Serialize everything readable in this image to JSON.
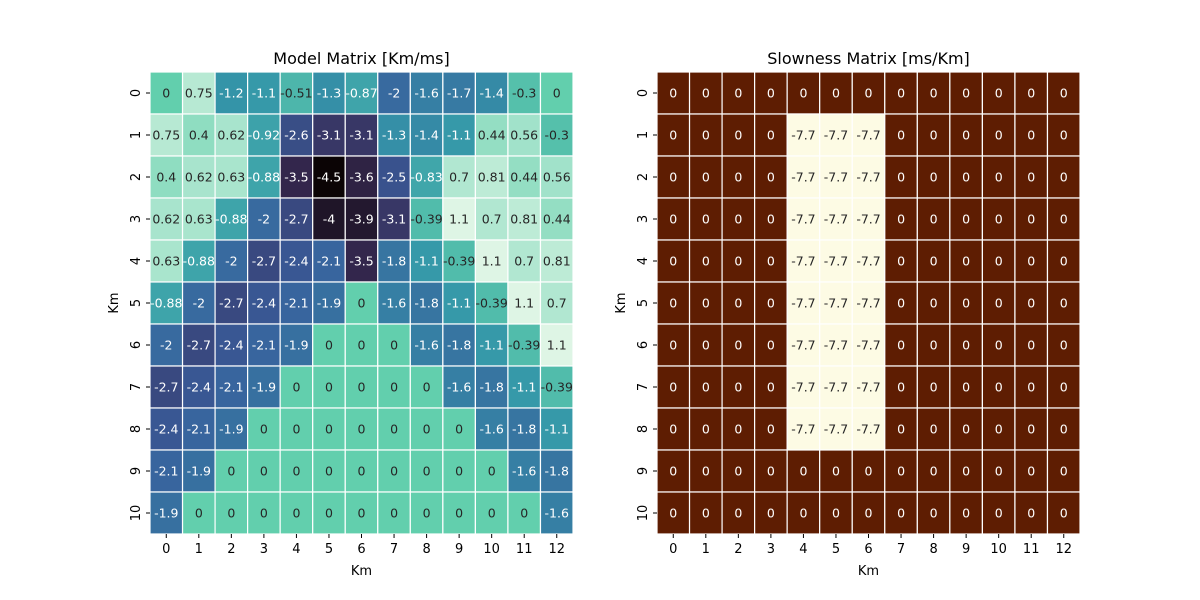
{
  "chart_data": [
    {
      "type": "heatmap",
      "title": "Model Matrix [Km/ms]",
      "xlabel": "Km",
      "ylabel": "Km",
      "x_ticks": [
        "0",
        "1",
        "2",
        "3",
        "4",
        "5",
        "6",
        "7",
        "8",
        "9",
        "10",
        "11",
        "12"
      ],
      "y_ticks": [
        "0",
        "1",
        "2",
        "3",
        "4",
        "5",
        "6",
        "7",
        "8",
        "9",
        "10"
      ],
      "colormap": "mako",
      "grid": true,
      "annotations": true,
      "values": [
        [
          0,
          0.75,
          -1.2,
          -1.1,
          -0.51,
          -1.3,
          -0.87,
          -2,
          -1.6,
          -1.7,
          -1.4,
          -0.3,
          0
        ],
        [
          0.75,
          0.4,
          0.62,
          -0.92,
          -2.6,
          -3.1,
          -3.1,
          -1.3,
          -1.4,
          -1.1,
          0.44,
          0.56,
          -0.3
        ],
        [
          0.4,
          0.62,
          0.63,
          -0.88,
          -3.5,
          -4.5,
          -3.6,
          -2.5,
          -0.83,
          0.7,
          0.81,
          0.44,
          0.56
        ],
        [
          0.62,
          0.63,
          -0.88,
          -2,
          -2.7,
          -4,
          -3.9,
          -3.1,
          -0.39,
          1.1,
          0.7,
          0.81,
          0.44
        ],
        [
          0.63,
          -0.88,
          -2,
          -2.7,
          -2.4,
          -2.1,
          -3.5,
          -1.8,
          -1.1,
          -0.39,
          1.1,
          0.7,
          0.81
        ],
        [
          -0.88,
          -2,
          -2.7,
          -2.4,
          -2.1,
          -1.9,
          0,
          -1.6,
          -1.8,
          -1.1,
          -0.39,
          1.1,
          0.7
        ],
        [
          -2,
          -2.7,
          -2.4,
          -2.1,
          -1.9,
          0,
          0,
          0,
          -1.6,
          -1.8,
          -1.1,
          -0.39,
          1.1
        ],
        [
          -2.7,
          -2.4,
          -2.1,
          -1.9,
          0,
          0,
          0,
          0,
          0,
          -1.6,
          -1.8,
          -1.1,
          -0.39
        ],
        [
          -2.4,
          -2.1,
          -1.9,
          0,
          0,
          0,
          0,
          0,
          0,
          0,
          -1.6,
          -1.8,
          -1.1
        ],
        [
          -2.1,
          -1.9,
          0,
          0,
          0,
          0,
          0,
          0,
          0,
          0,
          0,
          -1.6,
          -1.8
        ],
        [
          -1.9,
          0,
          0,
          0,
          0,
          0,
          0,
          0,
          0,
          0,
          0,
          0,
          -1.6
        ]
      ]
    },
    {
      "type": "heatmap",
      "title": "Slowness Matrix [ms/Km]",
      "xlabel": "Km",
      "ylabel": "Km",
      "x_ticks": [
        "0",
        "1",
        "2",
        "3",
        "4",
        "5",
        "6",
        "7",
        "8",
        "9",
        "10",
        "11",
        "12"
      ],
      "y_ticks": [
        "0",
        "1",
        "2",
        "3",
        "4",
        "5",
        "6",
        "7",
        "8",
        "9",
        "10"
      ],
      "colormap": "brown-to-cream",
      "grid": true,
      "annotations": true,
      "values": [
        [
          0,
          0,
          0,
          0,
          0,
          0,
          0,
          0,
          0,
          0,
          0,
          0,
          0
        ],
        [
          0,
          0,
          0,
          0,
          -7.7,
          -7.7,
          -7.7,
          0,
          0,
          0,
          0,
          0,
          0
        ],
        [
          0,
          0,
          0,
          0,
          -7.7,
          -7.7,
          -7.7,
          0,
          0,
          0,
          0,
          0,
          0
        ],
        [
          0,
          0,
          0,
          0,
          -7.7,
          -7.7,
          -7.7,
          0,
          0,
          0,
          0,
          0,
          0
        ],
        [
          0,
          0,
          0,
          0,
          -7.7,
          -7.7,
          -7.7,
          0,
          0,
          0,
          0,
          0,
          0
        ],
        [
          0,
          0,
          0,
          0,
          -7.7,
          -7.7,
          -7.7,
          0,
          0,
          0,
          0,
          0,
          0
        ],
        [
          0,
          0,
          0,
          0,
          -7.7,
          -7.7,
          -7.7,
          0,
          0,
          0,
          0,
          0,
          0
        ],
        [
          0,
          0,
          0,
          0,
          -7.7,
          -7.7,
          -7.7,
          0,
          0,
          0,
          0,
          0,
          0
        ],
        [
          0,
          0,
          0,
          0,
          -7.7,
          -7.7,
          -7.7,
          0,
          0,
          0,
          0,
          0,
          0
        ],
        [
          0,
          0,
          0,
          0,
          0,
          0,
          0,
          0,
          0,
          0,
          0,
          0,
          0
        ],
        [
          0,
          0,
          0,
          0,
          0,
          0,
          0,
          0,
          0,
          0,
          0,
          0,
          0
        ]
      ]
    }
  ],
  "colors": {
    "model_palette": [
      "#0b0405",
      "#382a54",
      "#395d9c",
      "#3497a9",
      "#60ceac",
      "#def5e5"
    ],
    "slowness_palette": [
      "#fdfbe4",
      "#5e1d02"
    ],
    "grid_line": "#ffffff"
  }
}
